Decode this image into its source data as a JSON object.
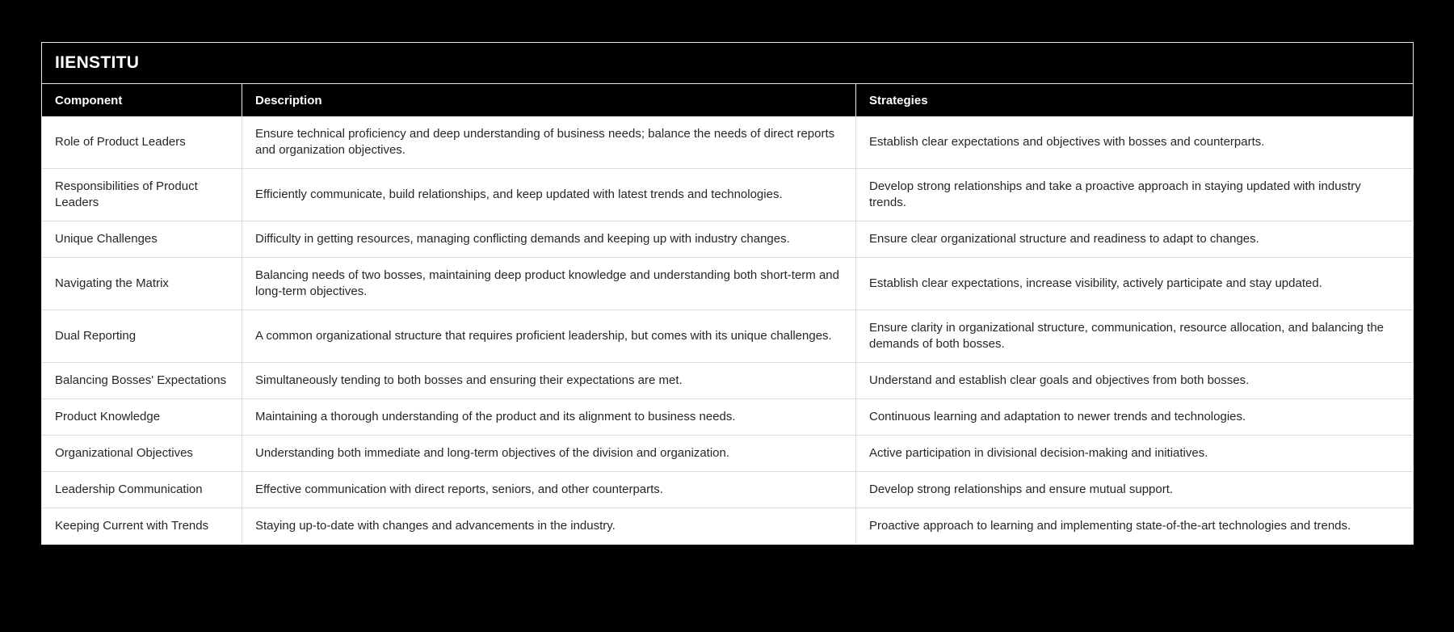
{
  "page": {
    "background_color": "#000000",
    "card_background": "#ffffff",
    "header_bar_color": "#000000",
    "header_text_color": "#ffffff",
    "body_text_color": "#262626",
    "divider_color": "#dcdcdc"
  },
  "header": {
    "title": "IIENSTITU"
  },
  "table": {
    "columns": [
      "Component",
      "Description",
      "Strategies"
    ],
    "rows": [
      {
        "component": "Role of Product Leaders",
        "description": "Ensure technical proficiency and deep understanding of business needs; balance the needs of direct reports and organization objectives.",
        "strategies": "Establish clear expectations and objectives with bosses and counterparts."
      },
      {
        "component": "Responsibilities of Product Leaders",
        "description": "Efficiently communicate, build relationships, and keep updated with latest trends and technologies.",
        "strategies": "Develop strong relationships and take a proactive approach in staying updated with industry trends."
      },
      {
        "component": "Unique Challenges",
        "description": "Difficulty in getting resources, managing conflicting demands and keeping up with industry changes.",
        "strategies": "Ensure clear organizational structure and readiness to adapt to changes."
      },
      {
        "component": "Navigating the Matrix",
        "description": "Balancing needs of two bosses, maintaining deep product knowledge and understanding both short-term and long-term objectives.",
        "strategies": "Establish clear expectations, increase visibility, actively participate and stay updated."
      },
      {
        "component": "Dual Reporting",
        "description": "A common organizational structure that requires proficient leadership, but comes with its unique challenges.",
        "strategies": "Ensure clarity in organizational structure, communication, resource allocation, and balancing the demands of both bosses."
      },
      {
        "component": "Balancing Bosses' Expectations",
        "description": "Simultaneously tending to both bosses and ensuring their expectations are met.",
        "strategies": "Understand and establish clear goals and objectives from both bosses."
      },
      {
        "component": "Product Knowledge",
        "description": "Maintaining a thorough understanding of the product and its alignment to business needs.",
        "strategies": "Continuous learning and adaptation to newer trends and technologies."
      },
      {
        "component": "Organizational Objectives",
        "description": "Understanding both immediate and long-term objectives of the division and organization.",
        "strategies": "Active participation in divisional decision-making and initiatives."
      },
      {
        "component": "Leadership Communication",
        "description": "Effective communication with direct reports, seniors, and other counterparts.",
        "strategies": "Develop strong relationships and ensure mutual support."
      },
      {
        "component": "Keeping Current with Trends",
        "description": "Staying up-to-date with changes and advancements in the industry.",
        "strategies": "Proactive approach to learning and implementing state-of-the-art technologies and trends."
      }
    ]
  }
}
